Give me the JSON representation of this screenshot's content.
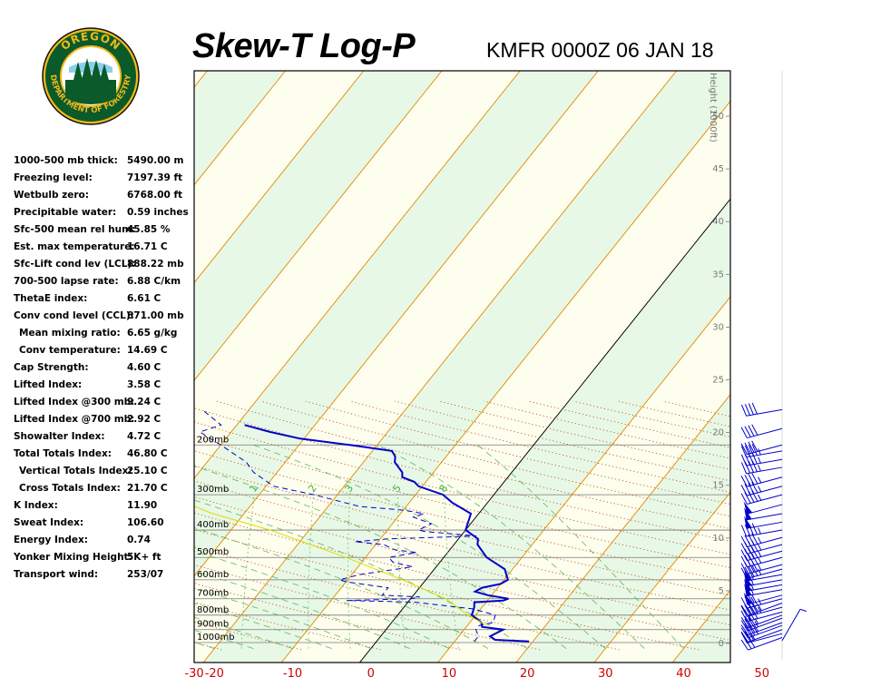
{
  "header": {
    "title": "Skew-T Log-P",
    "station": "KMFR 0000Z 06 JAN 18",
    "logo_text_top": "OREGON",
    "logo_text_bottom": "DEPARTMENT OF FORESTRY"
  },
  "indices": [
    {
      "label": "1000-500 mb thick:",
      "value": "5490.00 m",
      "indent": false
    },
    {
      "label": "Freezing level:",
      "value": "7197.39 ft",
      "indent": false
    },
    {
      "label": "Wetbulb zero:",
      "value": "6768.00 ft",
      "indent": false
    },
    {
      "label": "Precipitable water:",
      "value": "0.59 inches",
      "indent": false
    },
    {
      "label": "Sfc-500 mean rel hum:",
      "value": "45.85 %",
      "indent": false
    },
    {
      "label": "Est. max temperature:",
      "value": "16.71 C",
      "indent": false
    },
    {
      "label": "Sfc-Lift cond lev (LCL):",
      "value": "888.22 mb",
      "indent": false
    },
    {
      "label": "700-500 lapse rate:",
      "value": "6.88 C/km",
      "indent": false
    },
    {
      "label": "ThetaE index:",
      "value": "6.61 C",
      "indent": false
    },
    {
      "label": "Conv cond level (CCL):",
      "value": "871.00 mb",
      "indent": false
    },
    {
      "label": "Mean mixing ratio:",
      "value": "6.65 g/kg",
      "indent": true
    },
    {
      "label": "Conv temperature:",
      "value": "14.69 C",
      "indent": true
    },
    {
      "label": "Cap Strength:",
      "value": "4.60 C",
      "indent": false
    },
    {
      "label": "Lifted Index:",
      "value": "3.58 C",
      "indent": false
    },
    {
      "label": "Lifted Index @300 mb:",
      "value": "9.24 C",
      "indent": false
    },
    {
      "label": "Lifted Index @700 mb:",
      "value": "2.92 C",
      "indent": false
    },
    {
      "label": "Showalter Index:",
      "value": "4.72 C",
      "indent": false
    },
    {
      "label": "Total Totals Index:",
      "value": "46.80 C",
      "indent": false
    },
    {
      "label": "Vertical Totals Index:",
      "value": "25.10 C",
      "indent": true
    },
    {
      "label": "Cross Totals Index:",
      "value": "21.70 C",
      "indent": true
    },
    {
      "label": "K Index:",
      "value": "11.90",
      "indent": false
    },
    {
      "label": "Sweat Index:",
      "value": "106.60",
      "indent": false
    },
    {
      "label": "Energy Index:",
      "value": "0.74",
      "indent": false
    },
    {
      "label": "Yonker Mixing Height:",
      "value": "5K+ ft",
      "indent": false
    },
    {
      "label": "Transport wind:",
      "value": "253/07",
      "indent": false
    }
  ],
  "chart_data": {
    "type": "line",
    "title": "Skew-T Log-P",
    "subtitle": "KMFR 0000Z 06 JAN 18",
    "x_ticks": [
      "-30",
      "-20",
      "-10",
      "0",
      "10",
      "20",
      "30",
      "40",
      "50"
    ],
    "x_tick_values": [
      -30,
      -20,
      -10,
      0,
      10,
      20,
      30,
      40,
      50
    ],
    "pressure_levels": [
      1000,
      900,
      800,
      700,
      600,
      500,
      400,
      300,
      200
    ],
    "pressure_labels": [
      "1000mb",
      "900mb",
      "800mb",
      "700mb",
      "600mb",
      "500mb",
      "400mb",
      "300mb",
      "200mb"
    ],
    "height_axis_label": "Height (1000ft)",
    "height_ticks": [
      "0",
      "5",
      "10",
      "15",
      "20",
      "25",
      "30",
      "35",
      "40",
      "45",
      "50"
    ],
    "height_values": [
      0,
      5,
      10,
      15,
      20,
      25,
      30,
      35,
      40,
      45,
      50
    ],
    "mixing_ratio_labels": [
      "0.4",
      "1",
      "2",
      "3",
      "5",
      "8"
    ],
    "series": [
      {
        "key": "temperature",
        "style": "solid",
        "color": "#0000cc",
        "points": [
          [
            991,
            19.5
          ],
          [
            978,
            15
          ],
          [
            950,
            14
          ],
          [
            900,
            15
          ],
          [
            880,
            12
          ],
          [
            850,
            11.5
          ],
          [
            800,
            9.5
          ],
          [
            750,
            9
          ],
          [
            720,
            8.5
          ],
          [
            710,
            12
          ],
          [
            700,
            12.5
          ],
          [
            680,
            9.5
          ],
          [
            660,
            7.5
          ],
          [
            640,
            8
          ],
          [
            620,
            10
          ],
          [
            600,
            10.5
          ],
          [
            550,
            9
          ],
          [
            500,
            5.5
          ],
          [
            450,
            3
          ],
          [
            430,
            2.5
          ],
          [
            400,
            0
          ],
          [
            350,
            -1
          ],
          [
            320,
            -4.5
          ],
          [
            300,
            -6.5
          ],
          [
            280,
            -10.5
          ],
          [
            270,
            -11.5
          ],
          [
            260,
            -13.5
          ],
          [
            250,
            -14
          ],
          [
            240,
            -15
          ],
          [
            230,
            -16
          ],
          [
            220,
            -16.5
          ],
          [
            210,
            -17.5
          ],
          [
            200,
            -23.5
          ],
          [
            190,
            -30.5
          ],
          [
            180,
            -35
          ],
          [
            170,
            -39
          ]
        ]
      },
      {
        "key": "dewpoint",
        "style": "dashed",
        "color": "#0000cc",
        "points": [
          [
            991,
            12.5
          ],
          [
            950,
            12.5
          ],
          [
            900,
            11.5
          ],
          [
            870,
            11.5
          ],
          [
            850,
            13
          ],
          [
            800,
            12.5
          ],
          [
            760,
            9
          ],
          [
            740,
            5
          ],
          [
            720,
            1
          ],
          [
            715,
            -3
          ],
          [
            710,
            -8
          ],
          [
            700,
            0
          ],
          [
            690,
            1
          ],
          [
            680,
            -4
          ],
          [
            650,
            -4
          ],
          [
            640,
            -4
          ],
          [
            620,
            -8
          ],
          [
            610,
            -10
          ],
          [
            600,
            -11
          ],
          [
            575,
            -9
          ],
          [
            540,
            -3
          ],
          [
            520,
            -6
          ],
          [
            500,
            -7
          ],
          [
            480,
            -4
          ],
          [
            470,
            -7
          ],
          [
            450,
            -9
          ],
          [
            440,
            -13
          ],
          [
            430,
            -9
          ],
          [
            420,
            2
          ],
          [
            405,
            -5
          ],
          [
            400,
            -6
          ],
          [
            380,
            -5
          ],
          [
            360,
            -8
          ],
          [
            350,
            -7
          ],
          [
            340,
            -10
          ],
          [
            330,
            -16
          ],
          [
            300,
            -23
          ],
          [
            280,
            -29
          ],
          [
            250,
            -33
          ],
          [
            230,
            -35
          ],
          [
            200,
            -40
          ],
          [
            180,
            -44
          ],
          [
            170,
            -42
          ],
          [
            150,
            -46
          ]
        ]
      },
      {
        "key": "parcel",
        "style": "solid-thin",
        "color": "#dddd00",
        "points": [
          [
            870,
            12.5
          ],
          [
            800,
            9
          ],
          [
            700,
            4.5
          ],
          [
            600,
            -3
          ],
          [
            500,
            -12.5
          ],
          [
            400,
            -25
          ],
          [
            350,
            -34
          ],
          [
            300,
            -42
          ]
        ]
      }
    ],
    "wind_barbs": {
      "pressure": [
        985,
        960,
        930,
        900,
        870,
        850,
        820,
        800,
        780,
        750,
        725,
        700,
        680,
        650,
        625,
        600,
        575,
        550,
        530,
        500,
        475,
        450,
        425,
        400,
        375,
        350,
        325,
        300,
        280,
        260,
        240,
        225,
        210,
        200,
        175,
        150
      ],
      "direction_deg": [
        30,
        250,
        255,
        250,
        250,
        250,
        250,
        250,
        255,
        255,
        250,
        255,
        255,
        260,
        260,
        260,
        260,
        255,
        255,
        255,
        255,
        255,
        255,
        260,
        260,
        260,
        255,
        255,
        255,
        255,
        260,
        260,
        260,
        255,
        255,
        260
      ],
      "speed_kt": [
        5,
        25,
        25,
        25,
        35,
        35,
        35,
        35,
        40,
        45,
        45,
        45,
        55,
        55,
        55,
        55,
        55,
        45,
        45,
        45,
        45,
        45,
        45,
        45,
        50,
        50,
        50,
        45,
        45,
        45,
        45,
        45,
        45,
        40,
        40,
        40
      ]
    },
    "grid": true,
    "legend": "none"
  }
}
